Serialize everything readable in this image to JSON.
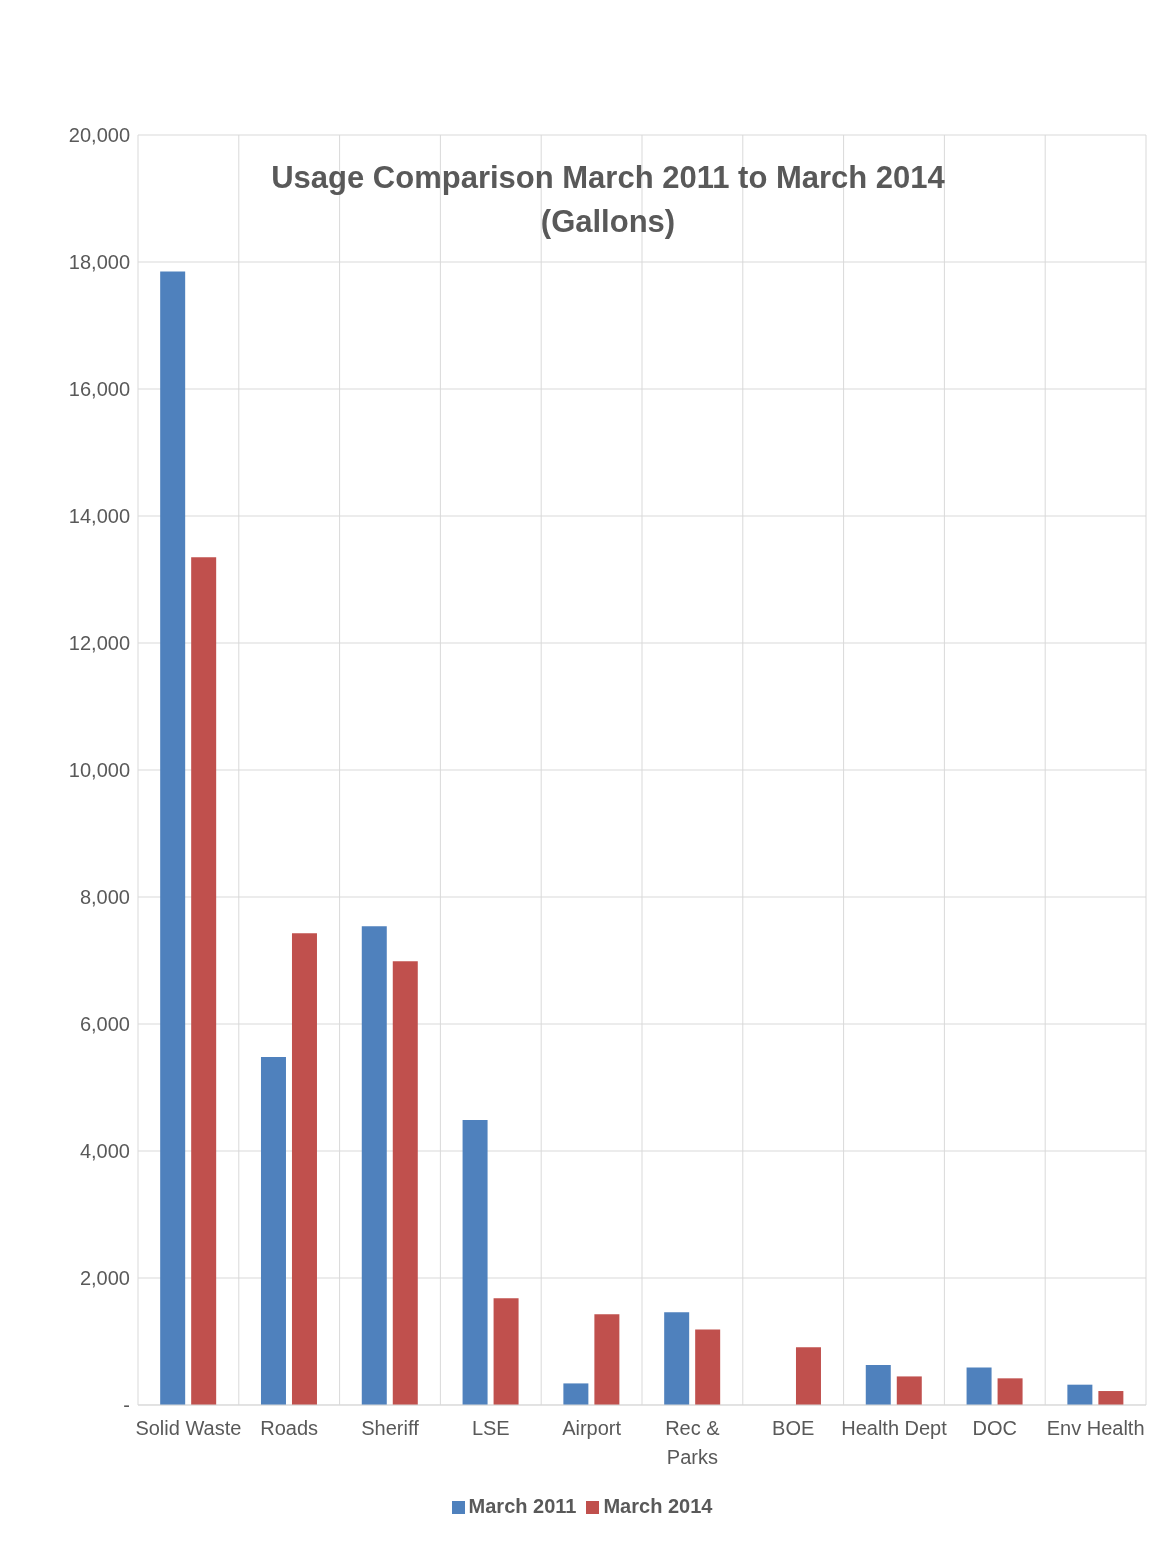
{
  "chart_data": {
    "type": "bar",
    "title": "Usage Comparison March 2011 to March 2014\n(Gallons)",
    "categories": [
      "Solid Waste",
      "Roads",
      "Sheriff",
      "LSE",
      "Airport",
      "Rec & Parks",
      "BOE",
      "Health Dept",
      "DOC",
      "Env Health"
    ],
    "series": [
      {
        "name": "March 2011",
        "color": "#4f81bd",
        "values": [
          17850,
          5480,
          7540,
          4490,
          340,
          1460,
          0,
          630,
          590,
          320
        ]
      },
      {
        "name": "March 2014",
        "color": "#c0504d",
        "values": [
          13350,
          7430,
          6990,
          1680,
          1430,
          1190,
          910,
          450,
          420,
          220
        ]
      }
    ],
    "ylim": [
      0,
      20000
    ],
    "yticks": [
      {
        "value": 0,
        "label": "-"
      },
      {
        "value": 2000,
        "label": "2,000"
      },
      {
        "value": 4000,
        "label": "4,000"
      },
      {
        "value": 6000,
        "label": "6,000"
      },
      {
        "value": 8000,
        "label": "8,000"
      },
      {
        "value": 10000,
        "label": "10,000"
      },
      {
        "value": 12000,
        "label": "12,000"
      },
      {
        "value": 14000,
        "label": "14,000"
      },
      {
        "value": 16000,
        "label": "16,000"
      },
      {
        "value": 18000,
        "label": "18,000"
      },
      {
        "value": 20000,
        "label": "20,000"
      }
    ],
    "grid": true,
    "legend": "bottom"
  }
}
